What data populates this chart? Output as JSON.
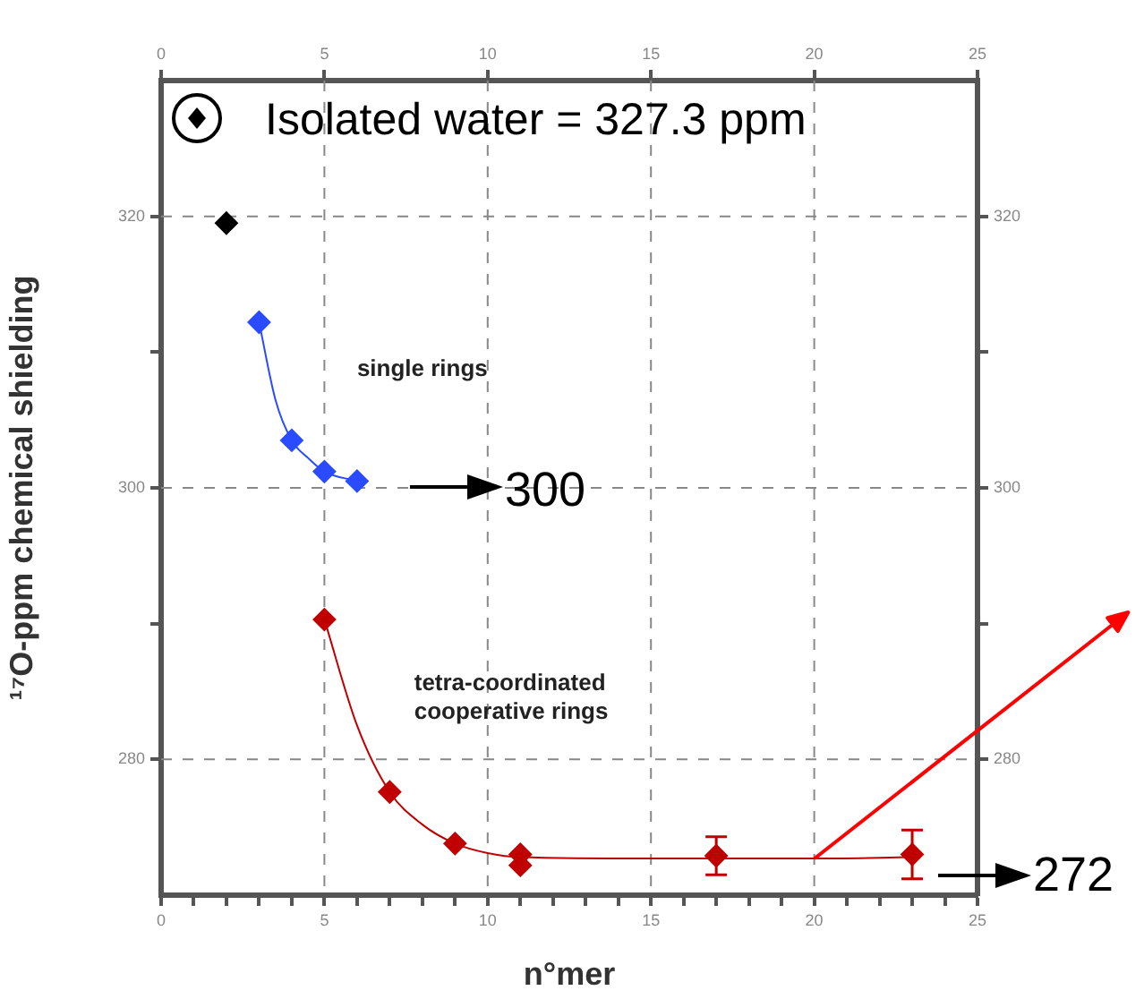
{
  "chart_data": {
    "type": "scatter",
    "xlabel": "n°mer",
    "ylabel": "¹⁷O-ppm chemical shielding",
    "xlim": [
      0,
      25
    ],
    "xticks": [
      0,
      {
        "value": 1,
        "label": null
      },
      {
        "value": 2,
        "label": null
      },
      {
        "value": 3,
        "label": null
      },
      {
        "value": 4,
        "label": null
      },
      5,
      {
        "value": 6,
        "label": null
      },
      {
        "value": 7,
        "label": null
      },
      {
        "value": 8,
        "label": null
      },
      {
        "value": 9,
        "label": null
      },
      10,
      {
        "value": 11,
        "label": null
      },
      {
        "value": 12,
        "label": null
      },
      {
        "value": 13,
        "label": null
      },
      {
        "value": 14,
        "label": null
      },
      15,
      {
        "value": 16,
        "label": null
      },
      {
        "value": 17,
        "label": null
      },
      {
        "value": 18,
        "label": null
      },
      {
        "value": 19,
        "label": null
      },
      20,
      {
        "value": 21,
        "label": null
      },
      {
        "value": 22,
        "label": null
      },
      {
        "value": 23,
        "label": null
      },
      {
        "value": 24,
        "label": null
      },
      25
    ],
    "x2lim": [
      0,
      25
    ],
    "x2ticks": [
      0,
      5,
      10,
      15,
      20,
      25
    ],
    "ylim": [
      270,
      330
    ],
    "yticks": [
      280,
      {
        "value": 290,
        "label": null
      },
      300,
      {
        "value": 310,
        "label": null
      },
      320
    ],
    "y2lim": [
      270,
      330
    ],
    "y2ticks": [
      280,
      {
        "value": 290,
        "label": null
      },
      300,
      {
        "value": 310,
        "label": null
      },
      320
    ],
    "grid": true,
    "legend": false,
    "marker": "diamond",
    "series": [
      {
        "color": "#000000",
        "x": [
          2
        ],
        "values": [
          319.5
        ]
      },
      {
        "color": "#2a4bff",
        "x": [
          3,
          4,
          5,
          6
        ],
        "values": [
          312.2,
          303.5,
          301.2,
          300.5
        ]
      },
      {
        "color": "#c00000",
        "x": [
          5,
          7,
          9,
          11,
          11,
          17,
          23
        ],
        "values": [
          290.3,
          277.6,
          273.8,
          273.0,
          272.2,
          272.9,
          273.0
        ],
        "errors": [
          null,
          null,
          null,
          null,
          null,
          1.4,
          1.8
        ]
      },
      {
        "type": "line",
        "marker": "none",
        "color": "#2a4bff",
        "x": [
          3,
          3.5,
          4,
          4.5,
          5,
          6
        ],
        "values": [
          312.2,
          306.5,
          303.5,
          302.2,
          301.2,
          300.5
        ]
      },
      {
        "type": "line",
        "marker": "none",
        "color": "#c00000",
        "x": [
          5,
          6,
          7,
          8,
          9,
          10,
          11,
          15,
          20,
          23
        ],
        "values": [
          290.3,
          282.5,
          277.6,
          275.2,
          273.8,
          273.1,
          272.8,
          272.7,
          272.7,
          272.8
        ]
      }
    ],
    "annotations": [
      "single rings",
      "tetra-coordinated cooperative rings",
      "Isolated water = 327.3 ppm",
      "300",
      "272"
    ]
  }
}
